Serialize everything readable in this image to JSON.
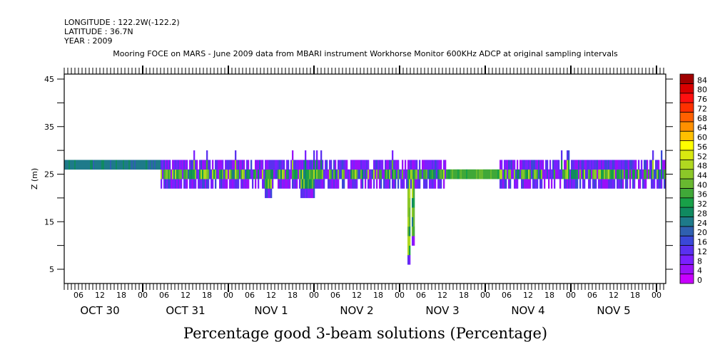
{
  "header": {
    "longitude": "LONGITUDE : 122.2W(-122.2)",
    "latitude": "LATITUDE : 36.7N",
    "year": "YEAR : 2009",
    "title": "Mooring FOCE on MARS - June 2009 data from MBARI instrument Workhorse Monitor 600KHz ADCP at original sampling intervals"
  },
  "chart_data": {
    "type": "heatmap",
    "title": "Percentage good 3-beam solutions (Percentage)",
    "ylabel": "Z (m)",
    "ylim": [
      2,
      46
    ],
    "yticks": [
      5,
      15,
      25,
      35,
      45
    ],
    "x_units": "hours since OCT 30 00:00",
    "xlim": [
      2,
      170.6
    ],
    "hour_labels": [
      "06",
      "12",
      "18",
      "00",
      "06",
      "12",
      "18",
      "00",
      "06",
      "12",
      "18",
      "00",
      "06",
      "12",
      "18",
      "00",
      "06",
      "12",
      "18",
      "00",
      "06",
      "12",
      "18",
      "00",
      "06",
      "12",
      "18",
      "00"
    ],
    "day_labels": [
      "OCT 30",
      "OCT 31",
      "NOV  1",
      "NOV  2",
      "NOV  3",
      "NOV  4",
      "NOV  5"
    ],
    "segments": [
      {
        "t0": 2,
        "t1": 29,
        "zmin": 26,
        "zmax": 28,
        "value": 26,
        "kind": "constant"
      },
      {
        "t0": 29,
        "t1": 109,
        "zmin": 22,
        "zmax": 28,
        "value": 30,
        "kind": "noisy"
      },
      {
        "t0": 109,
        "t1": 124,
        "zmin": 24,
        "zmax": 26,
        "value": 38,
        "kind": "constant"
      },
      {
        "t0": 124,
        "t1": 170.6,
        "zmin": 22,
        "zmax": 28,
        "value": 30,
        "kind": "noisy"
      }
    ],
    "dips": [
      {
        "t0": 58,
        "t1": 60,
        "zmin": 20
      },
      {
        "t0": 68,
        "t1": 72,
        "zmin": 20
      },
      {
        "t0": 98.2,
        "t1": 98.8,
        "zmin": 6
      },
      {
        "t0": 99.4,
        "t1": 100,
        "zmin": 10
      }
    ],
    "colorbar": {
      "levels": [
        0,
        4,
        8,
        12,
        16,
        20,
        24,
        28,
        32,
        36,
        40,
        44,
        48,
        52,
        56,
        60,
        64,
        68,
        72,
        76,
        80,
        84
      ],
      "labels": [
        "0",
        "4",
        "8",
        "12",
        "16",
        "20",
        "24",
        "28",
        "32",
        "36",
        "40",
        "44",
        "48",
        "52",
        "56",
        "60",
        "64",
        "68",
        "72",
        "76",
        "80",
        "84"
      ],
      "colors": [
        "#c800ff",
        "#9a10f8",
        "#7a20ff",
        "#5a30f0",
        "#3a48d8",
        "#2f60b0",
        "#1e7a8a",
        "#108a60",
        "#18a048",
        "#40a838",
        "#68b830",
        "#8cc828",
        "#b0d820",
        "#d8e810",
        "#ffff00",
        "#ffc000",
        "#ff9000",
        "#ff6000",
        "#ff3000",
        "#ff1010",
        "#d80000",
        "#a00000"
      ]
    }
  }
}
